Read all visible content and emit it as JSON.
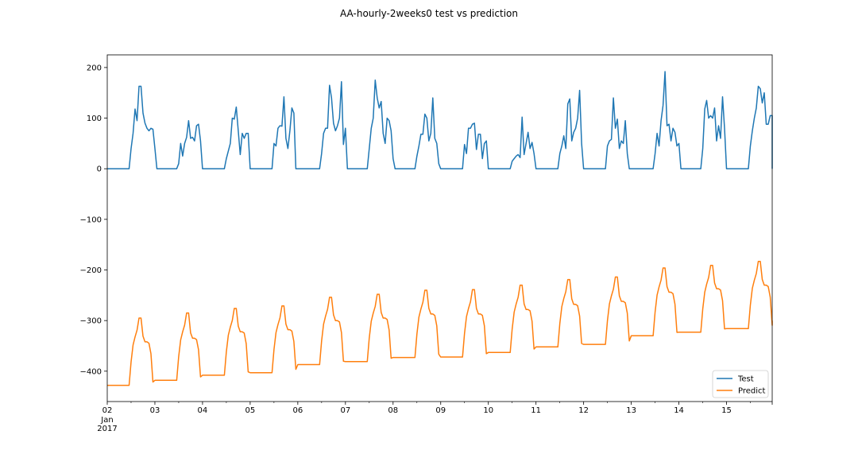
{
  "chart_data": {
    "type": "line",
    "title": "AA-hourly-2weeks0 test vs prediction",
    "xlabel": "",
    "ylabel": "",
    "x_range": [
      "2017-01-02 00:00",
      "2017-01-15 23:00"
    ],
    "ylim": [
      -460,
      225
    ],
    "y_ticks": [
      200,
      100,
      0,
      -100,
      -200,
      -300,
      -400
    ],
    "y_tick_labels": [
      "200",
      "100",
      "0",
      "−100",
      "−200",
      "−300",
      "−400"
    ],
    "x_ticks": [
      {
        "date": "2017-01-02",
        "label": "02",
        "sub": [
          "Jan",
          "2017"
        ]
      },
      {
        "date": "2017-01-03",
        "label": "03"
      },
      {
        "date": "2017-01-04",
        "label": "04"
      },
      {
        "date": "2017-01-05",
        "label": "05"
      },
      {
        "date": "2017-01-06",
        "label": "06"
      },
      {
        "date": "2017-01-07",
        "label": "07"
      },
      {
        "date": "2017-01-08",
        "label": "08"
      },
      {
        "date": "2017-01-09",
        "label": "09"
      },
      {
        "date": "2017-01-10",
        "label": "10"
      },
      {
        "date": "2017-01-11",
        "label": "11"
      },
      {
        "date": "2017-01-12",
        "label": "12"
      },
      {
        "date": "2017-01-13",
        "label": "13"
      },
      {
        "date": "2017-01-14",
        "label": "14"
      },
      {
        "date": "2017-01-15",
        "label": "15"
      }
    ],
    "legend_position": "bottom-right",
    "grid": false,
    "series": [
      {
        "name": "Test",
        "color": "#1f77b4",
        "daily_profiles": [
          {
            "date": "2017-01-02",
            "hourly_values": [
              0,
              0,
              0,
              0,
              0,
              0,
              0,
              0,
              0,
              0,
              0,
              0,
              40,
              70,
              118,
              95,
              163,
              163,
              110,
              90,
              80,
              75,
              80,
              78
            ]
          },
          {
            "date": "2017-01-03",
            "hourly_values": [
              40,
              0,
              0,
              0,
              0,
              0,
              0,
              0,
              0,
              0,
              0,
              0,
              10,
              50,
              25,
              50,
              62,
              95,
              60,
              62,
              55,
              85,
              88,
              55
            ]
          },
          {
            "date": "2017-01-04",
            "hourly_values": [
              0,
              0,
              0,
              0,
              0,
              0,
              0,
              0,
              0,
              0,
              0,
              0,
              20,
              35,
              50,
              100,
              98,
              122,
              75,
              28,
              70,
              60,
              70,
              70
            ]
          },
          {
            "date": "2017-01-05",
            "hourly_values": [
              0,
              0,
              0,
              0,
              0,
              0,
              0,
              0,
              0,
              0,
              0,
              0,
              50,
              45,
              80,
              85,
              84,
              142,
              60,
              40,
              75,
              120,
              110,
              0
            ]
          },
          {
            "date": "2017-01-06",
            "hourly_values": [
              0,
              0,
              0,
              0,
              0,
              0,
              0,
              0,
              0,
              0,
              0,
              0,
              30,
              70,
              80,
              80,
              165,
              140,
              90,
              75,
              85,
              100,
              172,
              48
            ]
          },
          {
            "date": "2017-01-07",
            "hourly_values": [
              80,
              0,
              0,
              0,
              0,
              0,
              0,
              0,
              0,
              0,
              0,
              0,
              40,
              80,
              100,
              175,
              140,
              120,
              133,
              70,
              50,
              100,
              95,
              75
            ]
          },
          {
            "date": "2017-01-08",
            "hourly_values": [
              20,
              0,
              0,
              0,
              0,
              0,
              0,
              0,
              0,
              0,
              0,
              0,
              25,
              45,
              68,
              68,
              108,
              100,
              55,
              70,
              140,
              60,
              50,
              10
            ]
          },
          {
            "date": "2017-01-09",
            "hourly_values": [
              0,
              0,
              0,
              0,
              0,
              0,
              0,
              0,
              0,
              0,
              0,
              0,
              48,
              30,
              80,
              80,
              88,
              90,
              38,
              68,
              68,
              20,
              50,
              55
            ]
          },
          {
            "date": "2017-01-10",
            "hourly_values": [
              0,
              0,
              0,
              0,
              0,
              0,
              0,
              0,
              0,
              0,
              0,
              0,
              15,
              20,
              25,
              28,
              22,
              102,
              28,
              50,
              72,
              40,
              52,
              30
            ]
          },
          {
            "date": "2017-01-11",
            "hourly_values": [
              0,
              0,
              0,
              0,
              0,
              0,
              0,
              0,
              0,
              0,
              0,
              0,
              30,
              45,
              65,
              40,
              128,
              138,
              55,
              72,
              80,
              100,
              155,
              50
            ]
          },
          {
            "date": "2017-01-12",
            "hourly_values": [
              0,
              0,
              0,
              0,
              0,
              0,
              0,
              0,
              0,
              0,
              0,
              0,
              45,
              55,
              58,
              140,
              80,
              98,
              40,
              55,
              50,
              95,
              30,
              0
            ]
          },
          {
            "date": "2017-01-13",
            "hourly_values": [
              0,
              0,
              0,
              0,
              0,
              0,
              0,
              0,
              0,
              0,
              0,
              0,
              30,
              70,
              45,
              95,
              125,
              192,
              85,
              88,
              55,
              80,
              72,
              45
            ]
          },
          {
            "date": "2017-01-14",
            "hourly_values": [
              50,
              0,
              0,
              0,
              0,
              0,
              0,
              0,
              0,
              0,
              0,
              0,
              40,
              118,
              135,
              100,
              105,
              100,
              120,
              55,
              85,
              60,
              142,
              80
            ]
          },
          {
            "date": "2017-01-15",
            "hourly_values": [
              0,
              0,
              0,
              0,
              0,
              0,
              0,
              0,
              0,
              0,
              0,
              0,
              45,
              75,
              100,
              120,
              163,
              158,
              130,
              150,
              88,
              88,
              105,
              105
            ]
          }
        ],
        "last_value": 0
      },
      {
        "name": "Predict",
        "color": "#ff7f0e",
        "daily_profiles": [
          {
            "date": "2017-01-02",
            "base": -428,
            "peak": -295,
            "evening": -342
          },
          {
            "date": "2017-01-03",
            "base": -418,
            "peak": -285,
            "evening": -335
          },
          {
            "date": "2017-01-04",
            "base": -408,
            "peak": -276,
            "evening": -322
          },
          {
            "date": "2017-01-05",
            "base": -403,
            "peak": -271,
            "evening": -318
          },
          {
            "date": "2017-01-06",
            "base": -387,
            "peak": -254,
            "evening": -300
          },
          {
            "date": "2017-01-07",
            "base": -381,
            "peak": -248,
            "evening": -295
          },
          {
            "date": "2017-01-08",
            "base": -373,
            "peak": -240,
            "evening": -287
          },
          {
            "date": "2017-01-09",
            "base": -372,
            "peak": -239,
            "evening": -287
          },
          {
            "date": "2017-01-10",
            "base": -363,
            "peak": -230,
            "evening": -278
          },
          {
            "date": "2017-01-11",
            "base": -352,
            "peak": -219,
            "evening": -268
          },
          {
            "date": "2017-01-12",
            "base": -347,
            "peak": -214,
            "evening": -262
          },
          {
            "date": "2017-01-13",
            "base": -330,
            "peak": -196,
            "evening": -244
          },
          {
            "date": "2017-01-14",
            "base": -323,
            "peak": -191,
            "evening": -237
          },
          {
            "date": "2017-01-15",
            "base": -316,
            "peak": -183,
            "evening": -230
          }
        ],
        "last_value": -300
      }
    ]
  }
}
